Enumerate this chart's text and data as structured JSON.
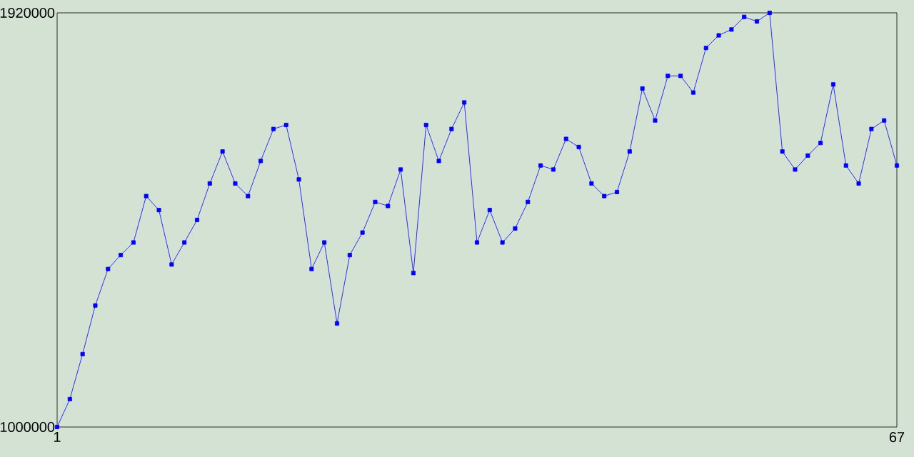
{
  "chart_data": {
    "type": "line",
    "x": [
      1,
      2,
      3,
      4,
      5,
      6,
      7,
      8,
      9,
      10,
      11,
      12,
      13,
      14,
      15,
      16,
      17,
      18,
      19,
      20,
      21,
      22,
      23,
      24,
      25,
      26,
      27,
      28,
      29,
      30,
      31,
      32,
      33,
      34,
      35,
      36,
      37,
      38,
      39,
      40,
      41,
      42,
      43,
      44,
      45,
      46,
      47,
      48,
      49,
      50,
      51,
      52,
      53,
      54,
      55,
      56,
      57,
      58,
      59,
      60,
      61,
      62,
      63,
      64,
      65,
      66,
      67
    ],
    "series": [
      {
        "color": "#0000ff",
        "values": [
          1000000,
          1062000,
          1162000,
          1270000,
          1351000,
          1382000,
          1410000,
          1513000,
          1482000,
          1361000,
          1410000,
          1460000,
          1541000,
          1612000,
          1541000,
          1513000,
          1591000,
          1662000,
          1671000,
          1550000,
          1351000,
          1410000,
          1230000,
          1382000,
          1432000,
          1500000,
          1491000,
          1572000,
          1342000,
          1671000,
          1591000,
          1662000,
          1721000,
          1410000,
          1482000,
          1410000,
          1441000,
          1500000,
          1581000,
          1572000,
          1640000,
          1622000,
          1541000,
          1513000,
          1522000,
          1612000,
          1752000,
          1681000,
          1780000,
          1780000,
          1743000,
          1842000,
          1870000,
          1883000,
          1911000,
          1901000,
          1920000,
          1612000,
          1572000,
          1603000,
          1631000,
          1761000,
          1581000,
          1541000,
          1662000,
          1681000,
          1581000
        ]
      }
    ],
    "xlim": [
      1,
      67
    ],
    "ylim": [
      1000000,
      1920000
    ],
    "xticks": [
      1,
      67
    ],
    "yticks": [
      1000000,
      1920000
    ],
    "grid": false,
    "marker": "square",
    "line_style": "solid"
  }
}
